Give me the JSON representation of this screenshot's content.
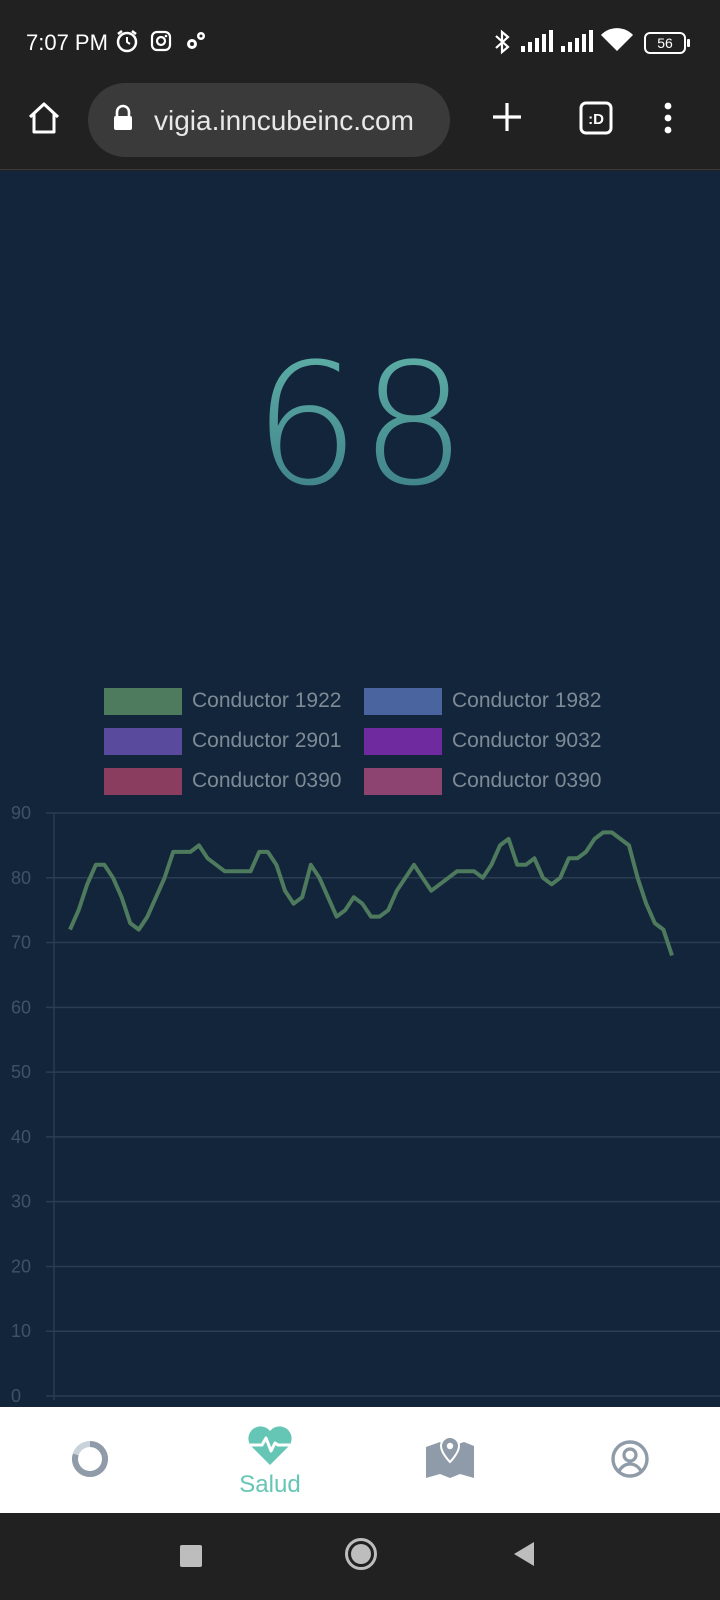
{
  "status_bar": {
    "time": "7:07 PM",
    "battery": "56",
    "icons": [
      "alarm-icon",
      "instagram-icon",
      "settings-icon",
      "bluetooth-icon",
      "signal-icon",
      "signal-icon",
      "wifi-icon",
      "battery-icon"
    ]
  },
  "browser": {
    "url": "vigia.inncubeinc.com",
    "tab_switcher_label": ":D",
    "icons": [
      "home-icon",
      "lock-icon",
      "new-tab-icon",
      "tab-switcher-icon",
      "more-vert-icon"
    ]
  },
  "heart_rate": {
    "current_value": "68"
  },
  "legend": [
    {
      "label": "Conductor 1922",
      "color": "#4e7a5d"
    },
    {
      "label": "Conductor 1982",
      "color": "#4a64a0"
    },
    {
      "label": "Conductor 2901",
      "color": "#5a4a9e"
    },
    {
      "label": "Conductor 9032",
      "color": "#6f2aa0"
    },
    {
      "label": "Conductor 0390",
      "color": "#8a3d5e"
    },
    {
      "label": "Conductor 0390",
      "color": "#8e4470"
    }
  ],
  "chart_data": {
    "type": "line",
    "ylim": [
      0,
      90
    ],
    "y_ticks": [
      "90",
      "80",
      "70",
      "60",
      "50",
      "40",
      "30",
      "20",
      "10",
      "0"
    ],
    "grid": true,
    "series": [
      {
        "name": "Conductor 1922",
        "color": "#4e7a5d",
        "values": [
          72,
          75,
          79,
          82,
          82,
          80,
          77,
          73,
          72,
          74,
          77,
          80,
          84,
          84,
          84,
          85,
          83,
          82,
          81,
          81,
          81,
          81,
          84,
          84,
          82,
          78,
          76,
          77,
          82,
          80,
          77,
          74,
          75,
          77,
          76,
          74,
          74,
          75,
          78,
          80,
          82,
          80,
          78,
          79,
          80,
          81,
          81,
          81,
          80,
          82,
          85,
          86,
          82,
          82,
          83,
          80,
          79,
          80,
          83,
          83,
          84,
          86,
          87,
          87,
          86,
          85,
          80,
          76,
          73,
          72,
          68
        ]
      }
    ]
  },
  "tab_bar": {
    "tabs": [
      {
        "name": "tab-dashboard",
        "icon": "donut-chart-icon",
        "label": ""
      },
      {
        "name": "tab-salud",
        "icon": "heart-pulse-icon",
        "label": "Salud"
      },
      {
        "name": "tab-map",
        "icon": "map-icon",
        "label": ""
      },
      {
        "name": "tab-profile",
        "icon": "user-circle-icon",
        "label": ""
      }
    ],
    "active_color": "#66c6b5",
    "inactive_color": "#8f9ba8"
  },
  "nav_bar": {
    "icons": [
      "recents-icon",
      "home-circle-icon",
      "back-icon"
    ]
  }
}
